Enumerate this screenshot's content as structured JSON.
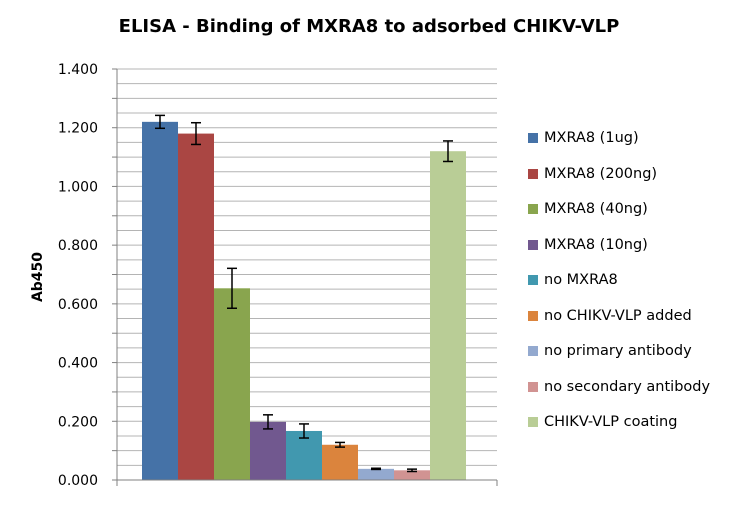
{
  "chart_data": {
    "type": "bar",
    "title": "ELISA - Binding of MXRA8 to adsorbed CHIKV-VLP",
    "xlabel": "",
    "ylabel": "Ab450",
    "ylim": [
      0,
      1.4
    ],
    "yticks": [
      "0.000",
      "0.200",
      "0.400",
      "0.600",
      "0.800",
      "1.000",
      "1.200",
      "1.400"
    ],
    "grid": true,
    "legend_position": "right",
    "series": [
      {
        "name": "MXRA8 (1ug)",
        "value": 1.22,
        "error": 0.022,
        "color": "#4572A7"
      },
      {
        "name": "MXRA8 (200ng)",
        "value": 1.18,
        "error": 0.037,
        "color": "#AA4643"
      },
      {
        "name": "MXRA8 (40ng)",
        "value": 0.653,
        "error": 0.068,
        "color": "#89A54E"
      },
      {
        "name": "MXRA8 (10ng)",
        "value": 0.198,
        "error": 0.024,
        "color": "#71588F"
      },
      {
        "name": "no MXRA8",
        "value": 0.167,
        "error": 0.024,
        "color": "#4198AF"
      },
      {
        "name": "no CHIKV-VLP added",
        "value": 0.12,
        "error": 0.008,
        "color": "#DB843D"
      },
      {
        "name": "no primary antibody",
        "value": 0.038,
        "error": 0.002,
        "color": "#93A9CF"
      },
      {
        "name": "no secondary antibody",
        "value": 0.033,
        "error": 0.004,
        "color": "#D19392"
      },
      {
        "name": "CHIKV-VLP coating",
        "value": 1.12,
        "error": 0.035,
        "color": "#B9CD96"
      }
    ]
  }
}
